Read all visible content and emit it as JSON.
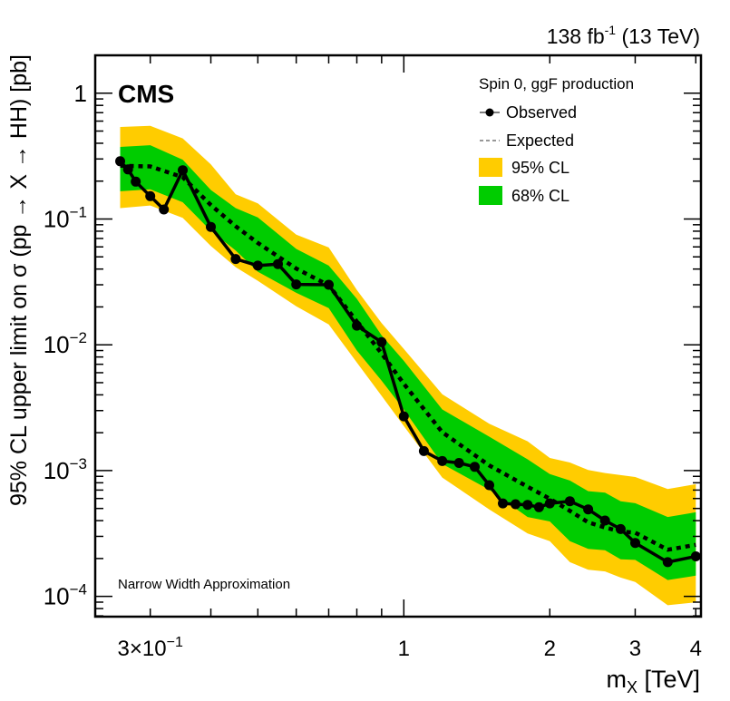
{
  "chart_data": {
    "type": "line",
    "title": "",
    "lumi_label": "138 fb",
    "lumi_sup": "-1",
    "energy_label": "(13 TeV)",
    "experiment_label": "CMS",
    "annotation": "Narrow Width Approximation",
    "xlabel": "m",
    "xlabel_sub": "X",
    "xlabel_unit": "[TeV]",
    "ylabel": "95% CL upper limit on σ (pp → X → HH) [pb]",
    "xscale": "log",
    "yscale": "log",
    "xlim": [
      0.231,
      4.1
    ],
    "ylim": [
      6.9e-05,
      2.0
    ],
    "grid": false,
    "x_ticks": [
      {
        "value": 0.3,
        "label": "3×10",
        "sup": "−1"
      },
      {
        "value": 1,
        "label": "1",
        "sup": ""
      },
      {
        "value": 2,
        "label": "2",
        "sup": ""
      },
      {
        "value": 3,
        "label": "3",
        "sup": ""
      },
      {
        "value": 4,
        "label": "4",
        "sup": ""
      }
    ],
    "x_minor_ticks": [
      0.3,
      0.4,
      0.5,
      0.6,
      0.7,
      0.8,
      0.9,
      2,
      3,
      4
    ],
    "y_ticks": [
      {
        "value": 1,
        "label": "1",
        "sup": ""
      },
      {
        "value": 0.1,
        "label": "10",
        "sup": "−1"
      },
      {
        "value": 0.01,
        "label": "10",
        "sup": "−2"
      },
      {
        "value": 0.001,
        "label": "10",
        "sup": "−3"
      },
      {
        "value": 0.0001,
        "label": "10",
        "sup": "−4"
      }
    ],
    "legend": {
      "placement": "top-right",
      "header": "Spin 0, ggF production",
      "entries": [
        {
          "label": "Observed",
          "kind": "marker-line"
        },
        {
          "label": "Expected",
          "kind": "dashed-line"
        },
        {
          "label": "95% CL",
          "kind": "fill",
          "color": "#FFCC00"
        },
        {
          "label": "68% CL",
          "kind": "fill",
          "color": "#00CC00"
        }
      ]
    },
    "colors": {
      "band95": "#FFCC00",
      "band68": "#00CC00",
      "observed": "#000000",
      "expected": "#000000"
    },
    "series": [
      {
        "name": "Observed",
        "x": [
          0.26,
          0.27,
          0.28,
          0.3,
          0.32,
          0.35,
          0.4,
          0.45,
          0.5,
          0.55,
          0.6,
          0.7,
          0.8,
          0.9,
          1.0,
          1.1,
          1.2,
          1.3,
          1.4,
          1.5,
          1.6,
          1.7,
          1.8,
          1.9,
          2.0,
          2.2,
          2.4,
          2.6,
          2.8,
          3.0,
          3.5,
          4.0
        ],
        "y": [
          0.288,
          0.248,
          0.198,
          0.152,
          0.119,
          0.244,
          0.0865,
          0.0481,
          0.0426,
          0.0438,
          0.0302,
          0.03,
          0.0142,
          0.0105,
          0.0027,
          0.00143,
          0.00119,
          0.00115,
          0.00107,
          0.000766,
          0.000549,
          0.00054,
          0.000534,
          0.000512,
          0.000549,
          0.000571,
          0.000492,
          0.000401,
          0.000343,
          0.000266,
          0.000187,
          0.000208
        ]
      },
      {
        "name": "Expected",
        "x": [
          0.26,
          0.3,
          0.35,
          0.4,
          0.45,
          0.5,
          0.6,
          0.7,
          0.8,
          0.9,
          1.0,
          1.2,
          1.5,
          1.8,
          2.0,
          2.2,
          2.4,
          2.6,
          2.8,
          3.0,
          3.5,
          4.0
        ],
        "y": [
          0.265,
          0.262,
          0.215,
          0.129,
          0.0875,
          0.0645,
          0.0403,
          0.0297,
          0.0153,
          0.00854,
          0.0049,
          0.00202,
          0.0011,
          0.000745,
          0.000597,
          0.000479,
          0.000388,
          0.000353,
          0.000328,
          0.000321,
          0.000235,
          0.000257
        ]
      },
      {
        "name": "68% CL",
        "x": [
          0.26,
          0.3,
          0.35,
          0.4,
          0.45,
          0.5,
          0.6,
          0.7,
          0.8,
          0.9,
          1.0,
          1.2,
          1.5,
          1.8,
          2.0,
          2.2,
          2.4,
          2.6,
          2.8,
          3.0,
          3.5,
          4.0
        ],
        "low": [
          0.166,
          0.172,
          0.136,
          0.0806,
          0.0562,
          0.0381,
          0.0259,
          0.0196,
          0.009,
          0.00519,
          0.00306,
          0.00113,
          0.000705,
          0.000428,
          0.000394,
          0.000275,
          0.000239,
          0.000233,
          0.000197,
          0.000195,
          0.000135,
          0.000146
        ],
        "high": [
          0.374,
          0.386,
          0.296,
          0.17,
          0.122,
          0.103,
          0.0578,
          0.0426,
          0.0232,
          0.0119,
          0.00745,
          0.00306,
          0.00186,
          0.00123,
          0.00094,
          0.000833,
          0.000686,
          0.000668,
          0.000571,
          0.00055,
          0.000428,
          0.000466
        ]
      },
      {
        "name": "95% CL",
        "x": [
          0.26,
          0.3,
          0.35,
          0.4,
          0.45,
          0.5,
          0.6,
          0.7,
          0.8,
          0.9,
          1.0,
          1.2,
          1.5,
          1.8,
          2.0,
          2.2,
          2.4,
          2.6,
          2.8,
          3.0,
          3.5,
          4.0
        ],
        "low": [
          0.122,
          0.128,
          0.102,
          0.061,
          0.0414,
          0.0323,
          0.0202,
          0.0145,
          0.00723,
          0.00393,
          0.00226,
          0.00088,
          0.000492,
          0.000316,
          0.000275,
          0.000187,
          0.000163,
          0.000158,
          0.000141,
          0.00013,
          8.5e-05,
          8.97e-05
        ],
        "high": [
          0.539,
          0.551,
          0.437,
          0.272,
          0.157,
          0.133,
          0.075,
          0.0594,
          0.0273,
          0.0149,
          0.00927,
          0.00404,
          0.00236,
          0.00171,
          0.00126,
          0.00116,
          0.00101,
          0.000956,
          0.00092,
          0.000889,
          0.000713,
          0.00078
        ]
      }
    ]
  }
}
